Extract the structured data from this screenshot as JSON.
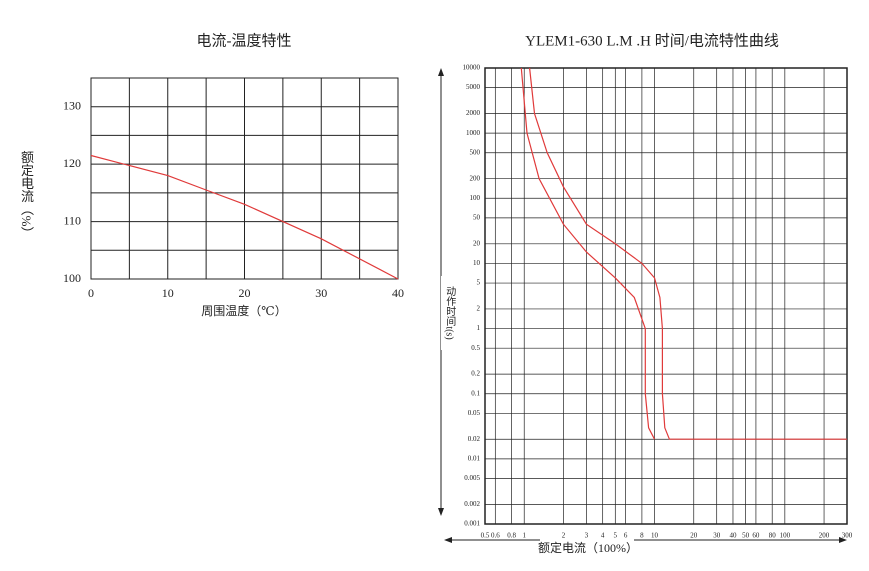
{
  "chart_data": [
    {
      "type": "line",
      "title": "电流-温度特性",
      "x_label": "周围温度（℃）",
      "y_label": "额定电流（%）",
      "x": [
        0,
        10,
        15,
        20,
        30,
        40
      ],
      "series": [
        {
          "color": "#e03a3a",
          "values": [
            121.5,
            118,
            115.5,
            113,
            107,
            100
          ]
        }
      ],
      "xlim": [
        0,
        40
      ],
      "ylim": [
        100,
        135
      ],
      "xticks": [
        0,
        10,
        20,
        30,
        40
      ],
      "yticks": [
        100,
        110,
        120,
        130
      ],
      "xgrid": [
        0,
        5,
        10,
        15,
        20,
        25,
        30,
        35,
        40
      ],
      "ygrid": [
        100,
        105,
        110,
        115,
        120,
        125,
        130,
        135
      ]
    },
    {
      "type": "line",
      "title": "YLEM1-630 L.M .H 时间/电流特性曲线",
      "x_label": "额定电流（100%）",
      "y_label": "动作时间t(s)",
      "log_x": true,
      "log_y": true,
      "series": [
        {
          "color": "#e03a3a",
          "x": [
            1.1,
            1.2,
            1.5,
            2,
            3,
            5,
            8,
            10,
            11,
            11.5,
            11.5,
            12,
            13,
            300
          ],
          "values": [
            10000,
            2000,
            500,
            150,
            40,
            20,
            10,
            6,
            3,
            1,
            0.1,
            0.03,
            0.02,
            0.02
          ]
        },
        {
          "color": "#e03a3a",
          "x": [
            0.95,
            1.05,
            1.3,
            2,
            3,
            5,
            7,
            8.5,
            8.5,
            9,
            10
          ],
          "values": [
            10000,
            1000,
            200,
            40,
            15,
            6,
            3,
            1,
            0.1,
            0.03,
            0.02
          ]
        }
      ],
      "xlim": [
        0.5,
        300
      ],
      "ylim": [
        0.001,
        10000
      ],
      "xticks": [
        0.5,
        0.6,
        0.8,
        1,
        2,
        3,
        4,
        5,
        6,
        8,
        10,
        20,
        30,
        40,
        50,
        60,
        80,
        100,
        200,
        300
      ],
      "yticks": [
        0.001,
        0.002,
        0.005,
        0.01,
        0.02,
        0.05,
        0.1,
        0.2,
        0.5,
        1,
        2,
        5,
        10,
        20,
        50,
        100,
        200,
        500,
        1000,
        2000,
        5000,
        10000
      ],
      "grid": true
    }
  ]
}
